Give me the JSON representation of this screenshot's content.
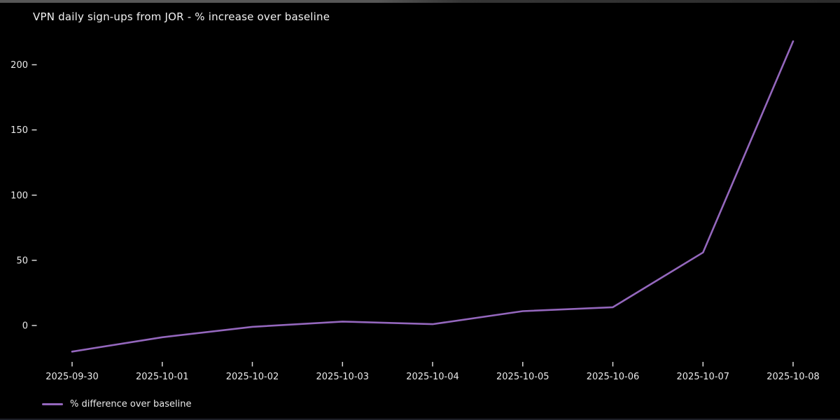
{
  "chart_data": {
    "type": "line",
    "title": "VPN daily sign-ups from JOR - % increase over baseline",
    "xlabel": "",
    "ylabel": "",
    "x": [
      "2025-09-30",
      "2025-10-01",
      "2025-10-02",
      "2025-10-03",
      "2025-10-04",
      "2025-10-05",
      "2025-10-06",
      "2025-10-07",
      "2025-10-08"
    ],
    "series": [
      {
        "name": "% difference over baseline",
        "values": [
          -20,
          -9,
          -1,
          3,
          1,
          11,
          14,
          56,
          218
        ]
      }
    ],
    "y_ticks": [
      0,
      50,
      100,
      150,
      200
    ],
    "ylim": [
      -30,
      228
    ],
    "grid": false,
    "legend_position": "lower left",
    "colors": {
      "line": "#9467bd",
      "background": "#000000",
      "text": "#e9e9e9",
      "tick": "#d9d9d9"
    }
  }
}
